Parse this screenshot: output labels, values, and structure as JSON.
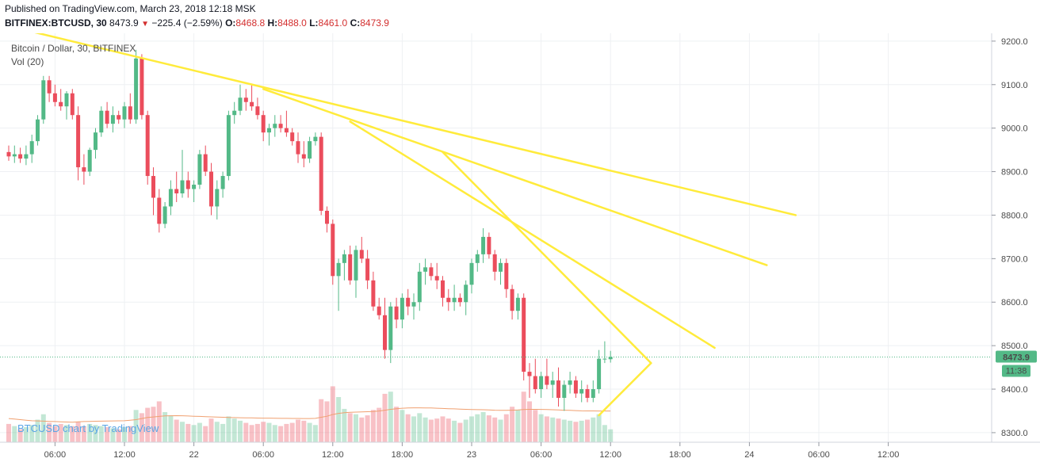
{
  "header": {
    "published": "Published on TradingView.com, March 23, 2018 12:18 MSK",
    "symbol": "BITFINEX:BTCUSD, 30",
    "last": "8473.9",
    "change_arrow": "▼",
    "change": "−225.4 (−2.59%)",
    "o_label": "O:",
    "o_value": "8468.8",
    "h_label": "H:",
    "h_value": "8488.0",
    "l_label": "L:",
    "l_value": "8461.0",
    "c_label": "C:",
    "c_value": "8473.9"
  },
  "legend": {
    "title": "Bitcoin / Dollar, 30, BITFINEX",
    "volume": "Vol (20)"
  },
  "watermark": "BTCUSD chart by TradingView",
  "price_label": "8473.9",
  "countdown_label": "11:38",
  "colors": {
    "up": "#53b987",
    "down": "#eb4d5c",
    "trendline": "#ffeb3b",
    "ma": "#f0a070",
    "grid": "#eef0f3",
    "price_line": "#53b987"
  },
  "chart_data": {
    "type": "candlestick",
    "y_ticks": [
      "9200.0",
      "9100.0",
      "9000.0",
      "8900.0",
      "8800.0",
      "8700.0",
      "8600.0",
      "8500.0",
      "8400.0",
      "8300.0"
    ],
    "y_tick_values": [
      9200,
      9100,
      9000,
      8900,
      8800,
      8700,
      8600,
      8500,
      8400,
      8300
    ],
    "ylim": [
      8278,
      9218
    ],
    "x_labels": [
      {
        "label": "06:00",
        "t": 8
      },
      {
        "label": "12:00",
        "t": 20
      },
      {
        "label": "22",
        "t": 32
      },
      {
        "label": "06:00",
        "t": 44
      },
      {
        "label": "12:00",
        "t": 56
      },
      {
        "label": "18:00",
        "t": 68
      },
      {
        "label": "23",
        "t": 80
      },
      {
        "label": "06:00",
        "t": 92
      },
      {
        "label": "12:00",
        "t": 104
      },
      {
        "label": "18:00",
        "t": 116
      },
      {
        "label": "24",
        "t": 128
      },
      {
        "label": "06:00",
        "t": 140
      },
      {
        "label": "12:00",
        "t": 152
      }
    ],
    "candles": [
      [
        8945,
        8960,
        8925,
        8935,
        170
      ],
      [
        8935,
        8960,
        8920,
        8940,
        150
      ],
      [
        8940,
        8955,
        8920,
        8930,
        120
      ],
      [
        8930,
        8960,
        8915,
        8940,
        140
      ],
      [
        8940,
        8985,
        8920,
        8970,
        160
      ],
      [
        8970,
        9030,
        8960,
        9020,
        210
      ],
      [
        9020,
        9120,
        9010,
        9110,
        260
      ],
      [
        9110,
        9120,
        9060,
        9080,
        180
      ],
      [
        9080,
        9100,
        9050,
        9060,
        150
      ],
      [
        9060,
        9090,
        9040,
        9050,
        170
      ],
      [
        9050,
        9085,
        9020,
        9080,
        160
      ],
      [
        9080,
        9090,
        9020,
        9030,
        150
      ],
      [
        9030,
        9050,
        8880,
        8910,
        190
      ],
      [
        8910,
        8940,
        8870,
        8900,
        150
      ],
      [
        8900,
        8955,
        8890,
        8950,
        170
      ],
      [
        8950,
        9000,
        8930,
        8990,
        160
      ],
      [
        8990,
        9050,
        8980,
        9040,
        150
      ],
      [
        9040,
        9060,
        9000,
        9010,
        140
      ],
      [
        9010,
        9050,
        8990,
        9030,
        130
      ],
      [
        9030,
        9040,
        9010,
        9020,
        120
      ],
      [
        9020,
        9060,
        9000,
        9050,
        140
      ],
      [
        9050,
        9080,
        9010,
        9020,
        150
      ],
      [
        9020,
        9180,
        9010,
        9160,
        300
      ],
      [
        9160,
        9170,
        9020,
        9030,
        270
      ],
      [
        9030,
        9040,
        8870,
        8890,
        320
      ],
      [
        8890,
        8910,
        8800,
        8840,
        330
      ],
      [
        8840,
        8860,
        8760,
        8780,
        380
      ],
      [
        8780,
        8830,
        8770,
        8820,
        280
      ],
      [
        8820,
        8880,
        8800,
        8860,
        250
      ],
      [
        8860,
        8900,
        8830,
        8850,
        210
      ],
      [
        8850,
        8950,
        8840,
        8880,
        190
      ],
      [
        8880,
        8900,
        8840,
        8860,
        170
      ],
      [
        8860,
        8880,
        8830,
        8870,
        160
      ],
      [
        8870,
        8950,
        8860,
        8940,
        180
      ],
      [
        8940,
        8960,
        8890,
        8900,
        150
      ],
      [
        8900,
        8920,
        8800,
        8820,
        220
      ],
      [
        8820,
        8880,
        8790,
        8860,
        190
      ],
      [
        8860,
        8900,
        8840,
        8890,
        170
      ],
      [
        8890,
        9040,
        8880,
        9030,
        240
      ],
      [
        9030,
        9060,
        9010,
        9040,
        220
      ],
      [
        9040,
        9100,
        9030,
        9070,
        200
      ],
      [
        9070,
        9090,
        9040,
        9060,
        180
      ],
      [
        9060,
        9100,
        9040,
        9050,
        160
      ],
      [
        9050,
        9070,
        9020,
        9030,
        170
      ],
      [
        9030,
        9040,
        8970,
        8990,
        190
      ],
      [
        8990,
        9010,
        8960,
        9000,
        180
      ],
      [
        9000,
        9030,
        8980,
        9010,
        160
      ],
      [
        9010,
        9030,
        8990,
        9000,
        150
      ],
      [
        9000,
        9040,
        8980,
        8990,
        170
      ],
      [
        8990,
        9000,
        8960,
        8970,
        180
      ],
      [
        8970,
        8990,
        8920,
        8940,
        210
      ],
      [
        8940,
        8970,
        8910,
        8930,
        200
      ],
      [
        8930,
        8980,
        8920,
        8970,
        180
      ],
      [
        8970,
        8990,
        8960,
        8980,
        160
      ],
      [
        8980,
        8990,
        8800,
        8810,
        400
      ],
      [
        8810,
        8820,
        8760,
        8780,
        380
      ],
      [
        8780,
        8790,
        8640,
        8660,
        520
      ],
      [
        8660,
        8700,
        8580,
        8690,
        420
      ],
      [
        8690,
        8720,
        8650,
        8710,
        310
      ],
      [
        8710,
        8730,
        8640,
        8650,
        270
      ],
      [
        8650,
        8730,
        8610,
        8720,
        260
      ],
      [
        8720,
        8750,
        8690,
        8700,
        230
      ],
      [
        8700,
        8720,
        8630,
        8650,
        250
      ],
      [
        8650,
        8670,
        8580,
        8590,
        300
      ],
      [
        8590,
        8610,
        8560,
        8570,
        320
      ],
      [
        8570,
        8610,
        8470,
        8490,
        450
      ],
      [
        8490,
        8600,
        8460,
        8590,
        470
      ],
      [
        8590,
        8610,
        8540,
        8560,
        330
      ],
      [
        8560,
        8620,
        8540,
        8610,
        300
      ],
      [
        8610,
        8630,
        8570,
        8590,
        260
      ],
      [
        8590,
        8620,
        8560,
        8600,
        240
      ],
      [
        8600,
        8690,
        8580,
        8670,
        270
      ],
      [
        8670,
        8700,
        8640,
        8680,
        230
      ],
      [
        8680,
        8690,
        8650,
        8660,
        210
      ],
      [
        8660,
        8690,
        8630,
        8650,
        220
      ],
      [
        8650,
        8660,
        8590,
        8610,
        240
      ],
      [
        8610,
        8630,
        8580,
        8600,
        220
      ],
      [
        8600,
        8640,
        8580,
        8610,
        200
      ],
      [
        8610,
        8620,
        8590,
        8600,
        180
      ],
      [
        8600,
        8650,
        8570,
        8640,
        210
      ],
      [
        8640,
        8700,
        8620,
        8690,
        240
      ],
      [
        8690,
        8720,
        8670,
        8710,
        260
      ],
      [
        8710,
        8770,
        8690,
        8750,
        280
      ],
      [
        8750,
        8760,
        8700,
        8710,
        250
      ],
      [
        8710,
        8720,
        8650,
        8670,
        230
      ],
      [
        8670,
        8700,
        8640,
        8690,
        210
      ],
      [
        8690,
        8700,
        8610,
        8630,
        260
      ],
      [
        8630,
        8640,
        8560,
        8580,
        330
      ],
      [
        8580,
        8620,
        8560,
        8610,
        300
      ],
      [
        8610,
        8620,
        8420,
        8440,
        470
      ],
      [
        8440,
        8460,
        8380,
        8430,
        380
      ],
      [
        8430,
        8470,
        8390,
        8400,
        300
      ],
      [
        8400,
        8440,
        8380,
        8430,
        260
      ],
      [
        8430,
        8470,
        8400,
        8410,
        240
      ],
      [
        8410,
        8440,
        8380,
        8420,
        230
      ],
      [
        8420,
        8450,
        8360,
        8380,
        220
      ],
      [
        8380,
        8420,
        8350,
        8410,
        210
      ],
      [
        8410,
        8440,
        8390,
        8420,
        200
      ],
      [
        8420,
        8430,
        8380,
        8390,
        190
      ],
      [
        8390,
        8420,
        8370,
        8400,
        200
      ],
      [
        8400,
        8410,
        8370,
        8380,
        210
      ],
      [
        8380,
        8420,
        8370,
        8400,
        230
      ],
      [
        8400,
        8490,
        8390,
        8470,
        260
      ],
      [
        8470,
        8510,
        8460,
        8470,
        160
      ],
      [
        8468.8,
        8488,
        8461,
        8473.9,
        120
      ]
    ],
    "ma_volume": [
      220,
      215,
      210,
      205,
      200,
      198,
      196,
      194,
      192,
      190,
      188,
      186,
      190,
      192,
      194,
      195,
      196,
      197,
      198,
      199,
      200,
      205,
      210,
      220,
      230,
      235,
      240,
      245,
      246,
      247,
      246,
      244,
      242,
      240,
      238,
      236,
      234,
      232,
      230,
      229,
      228,
      227,
      226,
      225,
      224,
      224,
      223,
      222,
      222,
      221,
      221,
      220,
      220,
      222,
      232,
      242,
      258,
      268,
      274,
      278,
      280,
      282,
      284,
      286,
      290,
      298,
      306,
      312,
      316,
      318,
      320,
      320,
      319,
      318,
      316,
      314,
      312,
      310,
      308,
      306,
      304,
      303,
      302,
      300,
      298,
      297,
      296,
      298,
      300,
      304,
      306,
      306,
      305,
      304,
      302,
      300,
      298,
      296,
      294,
      292,
      291,
      291,
      290,
      290,
      290
    ],
    "volume_max": 700,
    "trendlines": [
      {
        "from": [
          3,
          9225
        ],
        "to": [
          136,
          8800
        ]
      },
      {
        "from": [
          44,
          9090
        ],
        "to": [
          131,
          8685
        ]
      },
      {
        "from": [
          59,
          9015
        ],
        "to": [
          122,
          8495
        ]
      },
      {
        "from": [
          75,
          8945
        ],
        "to": [
          111,
          8460
        ]
      },
      {
        "from": [
          102,
          8340
        ],
        "to": [
          111,
          8460
        ]
      }
    ]
  }
}
